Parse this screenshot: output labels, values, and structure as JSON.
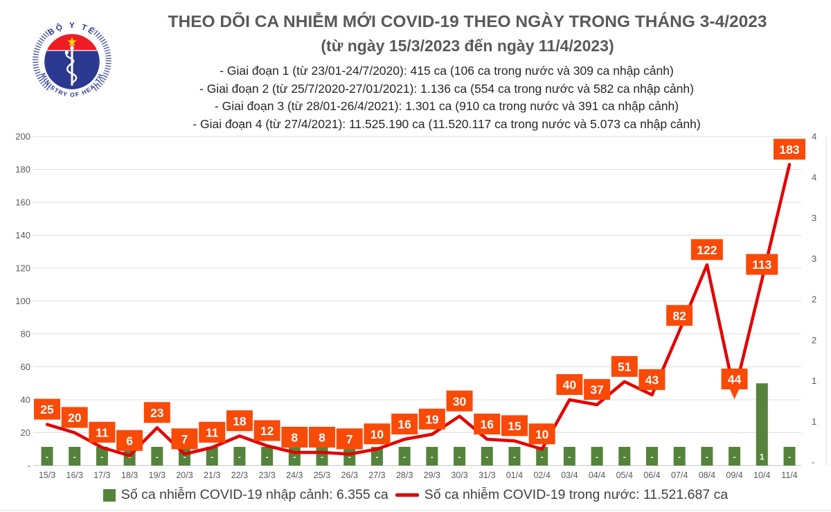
{
  "header": {
    "title": "THEO DÕI CA NHIỄM MỚI COVID-19 THEO NGÀY TRONG THÁNG 3-4/2023",
    "subtitle": "(từ ngày 15/3/2023 đến ngày 11/4/2023)",
    "stages": [
      "- Giai đoạn 1 (từ 23/01-24/7/2020): 415 ca (106 ca trong nước và 309 ca nhập cảnh)",
      "- Giai đoạn 2 (từ 25/7/2020-27/01/2021): 1.136 ca (554 ca trong nước và 582 ca nhập cảnh)",
      "- Giai đoạn 3 (từ 28/01-26/4/2021): 1.301 ca (910 ca trong nước và 391 ca nhập cảnh)",
      "- Giai đoạn 4 (từ 27/4/2021): 11.525.190 ca (11.520.117 ca trong nước và 5.073 ca nhập cảnh)"
    ]
  },
  "logo": {
    "top_text": "BỘ Y TẾ",
    "bottom_text": "MINISTRY OF HEALTH",
    "navy": "#2B3990",
    "flag_red": "#EE1C25",
    "star_yellow": "#FFDE00"
  },
  "chart_data": {
    "type": "combo-line-bar",
    "categories": [
      "15/3",
      "16/3",
      "17/3",
      "18/3",
      "19/3",
      "20/3",
      "21/3",
      "22/3",
      "23/3",
      "24/3",
      "25/3",
      "26/3",
      "27/3",
      "28/3",
      "29/3",
      "30/3",
      "31/3",
      "01/4",
      "02/4",
      "03/4",
      "04/4",
      "05/4",
      "06/4",
      "07/4",
      "08/4",
      "09/4",
      "10/4",
      "11/4"
    ],
    "series": [
      {
        "name": "Số ca nhiễm COVID-19 trong nước",
        "chart_type": "line",
        "axis": "left",
        "color": "#E30000",
        "values": [
          25,
          20,
          11,
          6,
          23,
          7,
          11,
          18,
          12,
          8,
          8,
          7,
          10,
          16,
          19,
          30,
          16,
          15,
          10,
          40,
          37,
          51,
          43,
          82,
          122,
          44,
          113,
          183
        ]
      },
      {
        "name": "Số ca nhiễm COVID-19 nhập cảnh",
        "chart_type": "bar",
        "axis": "right",
        "color": "#55833B",
        "values": [
          0,
          0,
          0,
          0,
          0,
          0,
          0,
          0,
          0,
          0,
          0,
          0,
          0,
          0,
          0,
          0,
          0,
          0,
          0,
          0,
          0,
          0,
          0,
          0,
          0,
          0,
          1,
          0
        ]
      }
    ],
    "left_axis": {
      "min": 0,
      "max": 200,
      "tick_step": 20,
      "tick_labels": [
        "200",
        "180",
        "160",
        "140",
        "120",
        "100",
        "80",
        "60",
        "40",
        "20",
        "-"
      ]
    },
    "right_axis": {
      "min": 0,
      "max": 4,
      "tick_labels": [
        "4",
        "4",
        "3",
        "3",
        "2",
        "2",
        "1",
        "1",
        "-"
      ]
    },
    "zero_display": "-",
    "data_label_bg": "#F94A08",
    "grid": true,
    "legend_position": "bottom"
  },
  "legend": {
    "items": [
      {
        "swatch": "bar",
        "color": "#55833B",
        "label": "Số ca nhiễm COVID-19 nhập cảnh: 6.355 ca"
      },
      {
        "swatch": "line",
        "color": "#E30000",
        "label": "Số ca nhiễm COVID-19 trong nước: 11.521.687 ca"
      }
    ]
  }
}
